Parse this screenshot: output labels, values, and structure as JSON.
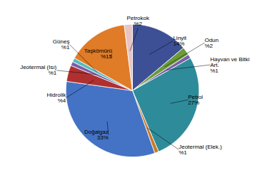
{
  "chart_data": {
    "type": "pie",
    "categories": [
      "Linyit",
      "Odun",
      "Hayvan ve Bitki\nArt.",
      "Petrol",
      "Jeotermal (Elek.)",
      "Doğalgaz",
      "Hidrolik",
      "Jeotermal (Isı)",
      "Güneş",
      "Taşkömürü",
      "Petrokok"
    ],
    "values": [
      14,
      2,
      1,
      27,
      1,
      33,
      4,
      1,
      1,
      15,
      2
    ],
    "value_labels": [
      "14%",
      "%2",
      "%1",
      "27%",
      "%1",
      "33%",
      "%4",
      "%1",
      "%1",
      "%15",
      "%2"
    ],
    "colors": [
      "#3D5096",
      "#6B9B3A",
      "#7B5EA7",
      "#2E8B9A",
      "#C87A2A",
      "#4472C4",
      "#B03030",
      "#7B5EA7",
      "#56BCBC",
      "#E07B28",
      "#E8C4C4"
    ],
    "data_labels": true
  }
}
